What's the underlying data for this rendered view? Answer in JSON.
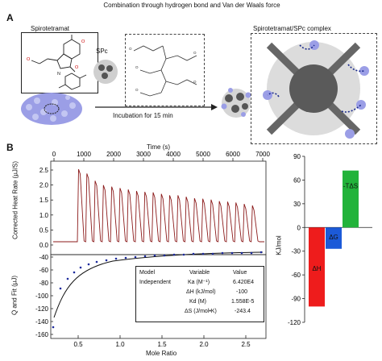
{
  "panel_a": {
    "letter": "A",
    "title": "Combination through hydrogen bond and Van der Waals force",
    "label_spirotetramat": "Spirotetramat",
    "label_spc": "SPc",
    "label_complex": "Spirotetramat/SPc complex",
    "incubation": "Incubation for 15 min"
  },
  "panel_b": {
    "letter": "B",
    "top_xlabel": "Time (s)",
    "top_ticks": [
      "0",
      "1000",
      "2000",
      "3000",
      "4000",
      "5000",
      "6000",
      "7000"
    ],
    "heat_ylabel": "Corrected Heat Rate (µJ/S)",
    "heat_yticks": [
      "2.5",
      "2.0",
      "1.5",
      "1.0",
      "0.5",
      "0.0"
    ],
    "fit_ylabel": "Q and Fit (µJ)",
    "fit_yticks": [
      "-40",
      "-60",
      "-80",
      "-100",
      "-120",
      "-140",
      "-160"
    ],
    "bottom_xlabel": "Mole Ratio",
    "bottom_xticks": [
      "0.5",
      "1.0",
      "1.5",
      "2.0",
      "2.5"
    ],
    "table": {
      "headers": [
        "Model",
        "Variable",
        "Value"
      ],
      "model": "Independent",
      "rows": [
        [
          "Ka (M⁻¹)",
          "6.420E4"
        ],
        [
          "ΔH (kJ/mol)",
          "-100"
        ],
        [
          "Kd (M)",
          "1.558E-5"
        ],
        [
          "ΔS (J/mol•K)",
          "-243.4"
        ]
      ]
    }
  },
  "chart_data": {
    "type": "bar",
    "categories": [
      "ΔH",
      "ΔG",
      "-TΔS"
    ],
    "values": [
      -100,
      -27,
      72
    ],
    "colors": [
      "#ee1c1c",
      "#1c5ad8",
      "#22b33a"
    ],
    "ylabel": "KJ/mol",
    "ylim": [
      -120,
      90
    ],
    "yticks": [
      "90",
      "60",
      "30",
      "0",
      "-30",
      "-60",
      "-90",
      "-120"
    ]
  }
}
